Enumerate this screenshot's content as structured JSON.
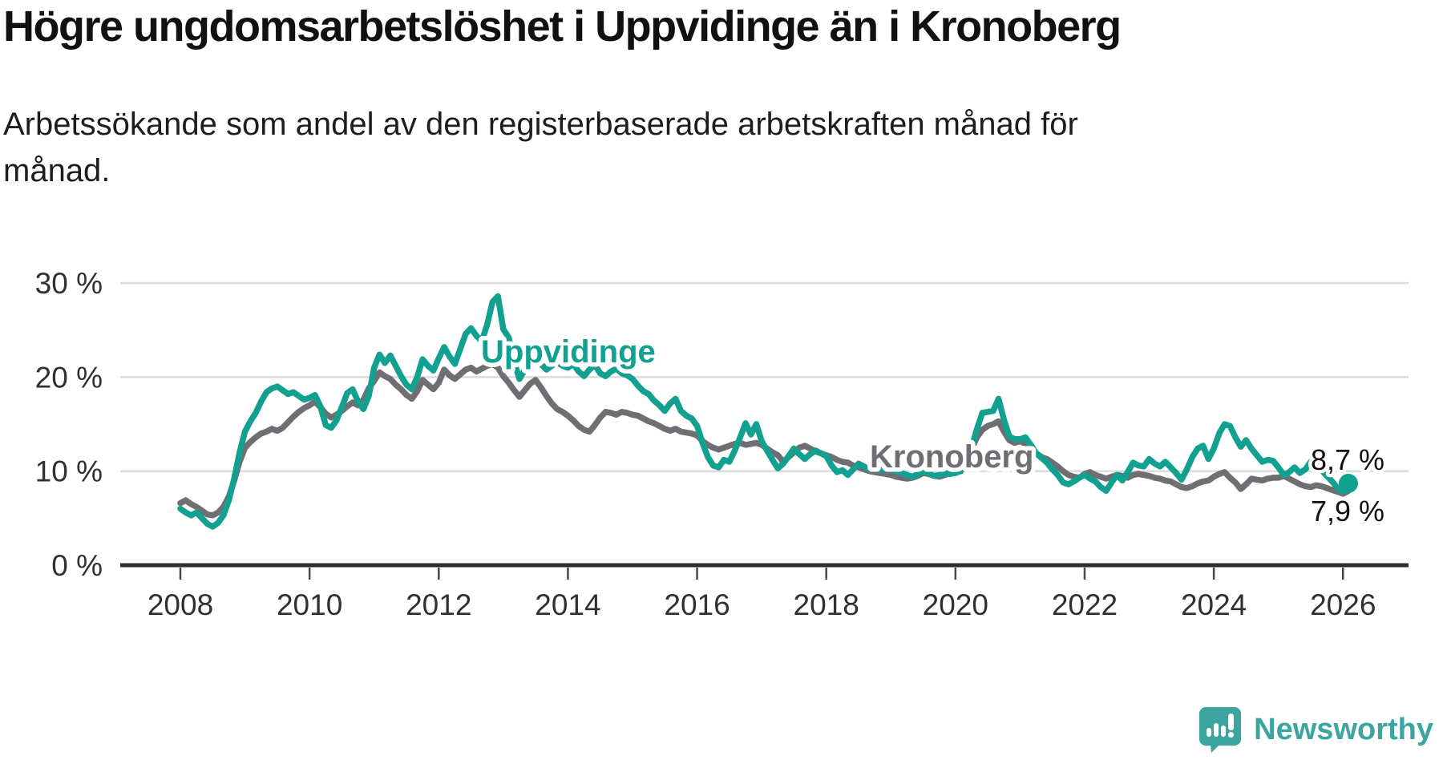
{
  "page": {
    "title": "Högre ungdomsarbetslöshet i Uppvidinge än i Kronoberg",
    "subtitle": "Arbetssökande som andel av den registerbaserade arbetskraften månad för månad."
  },
  "logo": {
    "label": "Newsworthy",
    "icon": "newsworthy-speech-bubble-bar-chart-icon",
    "color": "#3da59f"
  },
  "colors": {
    "uppvidinge": "#12a090",
    "kronoberg": "#6f6f73",
    "grid": "#dcdcdc",
    "axis": "#2e2e2e",
    "axis_text": "#303030",
    "value_label_text": "#111111",
    "halo": "#ffffff"
  },
  "chart_data": {
    "type": "line",
    "title": "Högre ungdomsarbetslöshet i Uppvidinge än i Kronoberg",
    "subtitle": "Arbetssökande som andel av den registerbaserade arbetskraften månad för månad.",
    "x_unit": "month",
    "x_start": "2008-01",
    "x_end": "2026-02",
    "x_tick_years": [
      2008,
      2010,
      2012,
      2014,
      2016,
      2018,
      2020,
      2022,
      2024,
      2026
    ],
    "y_ticks": [
      {
        "value": 0,
        "label": "0 %"
      },
      {
        "value": 10,
        "label": "10 %"
      },
      {
        "value": 20,
        "label": "20 %"
      },
      {
        "value": 30,
        "label": "30 %"
      }
    ],
    "ylim": [
      0,
      31
    ],
    "grid": "horizontal",
    "legend": "inline-labels",
    "series": [
      {
        "name": "Kronoberg",
        "label_text": "Kronoberg",
        "color": "#6f6f73",
        "end_label": "7,9 %",
        "end_value": 7.9,
        "end_dot": false,
        "values": [
          6.6,
          6.9,
          6.5,
          6.2,
          5.8,
          5.4,
          5.3,
          5.6,
          6.2,
          7.3,
          9.0,
          11.0,
          12.5,
          13.1,
          13.6,
          14.0,
          14.2,
          14.5,
          14.3,
          14.6,
          15.2,
          15.8,
          16.3,
          16.7,
          17.0,
          17.4,
          16.8,
          16.1,
          15.7,
          16.0,
          16.4,
          16.9,
          17.3,
          17.0,
          17.6,
          18.8,
          19.6,
          20.5,
          20.1,
          19.8,
          19.2,
          18.7,
          18.1,
          17.7,
          18.5,
          19.7,
          19.2,
          18.7,
          19.4,
          20.8,
          20.2,
          19.8,
          20.3,
          20.8,
          21.0,
          20.6,
          20.9,
          21.2,
          21.4,
          21.0,
          20.1,
          19.4,
          18.6,
          17.9,
          18.6,
          19.3,
          19.7,
          18.9,
          18.0,
          17.2,
          16.6,
          16.3,
          15.9,
          15.4,
          14.8,
          14.4,
          14.2,
          14.9,
          15.7,
          16.3,
          16.2,
          16.0,
          16.3,
          16.2,
          16.0,
          15.9,
          15.6,
          15.3,
          15.1,
          14.8,
          14.5,
          14.3,
          14.5,
          14.2,
          14.1,
          14.0,
          13.8,
          13.2,
          12.8,
          12.5,
          12.3,
          12.5,
          12.7,
          12.9,
          13.0,
          12.8,
          12.9,
          13.0,
          12.8,
          12.4,
          12.0,
          11.7,
          11.0,
          11.5,
          12.0,
          12.5,
          12.7,
          12.4,
          12.1,
          11.9,
          11.7,
          11.5,
          11.2,
          11.0,
          10.9,
          10.6,
          10.4,
          10.2,
          10.0,
          9.9,
          9.8,
          9.7,
          9.6,
          9.4,
          9.3,
          9.2,
          9.3,
          9.5,
          9.8,
          9.7,
          9.5,
          9.4,
          9.6,
          9.8,
          10.0,
          10.2,
          11.0,
          12.4,
          13.6,
          14.4,
          14.8,
          15.0,
          15.3,
          14.2,
          13.3,
          13.0,
          13.2,
          12.9,
          12.4,
          11.9,
          11.5,
          11.3,
          10.9,
          10.5,
          10.0,
          9.6,
          9.4,
          9.3,
          9.7,
          9.9,
          9.6,
          9.4,
          9.2,
          9.4,
          9.6,
          9.5,
          9.3,
          9.6,
          9.7,
          9.6,
          9.5,
          9.3,
          9.2,
          9.0,
          8.9,
          8.6,
          8.3,
          8.2,
          8.4,
          8.7,
          8.9,
          9.0,
          9.4,
          9.7,
          9.9,
          9.3,
          8.8,
          8.1,
          8.6,
          9.2,
          9.1,
          9.0,
          9.2,
          9.3,
          9.3,
          9.5,
          9.2,
          8.9,
          8.6,
          8.4,
          8.3,
          8.5,
          8.4,
          8.2,
          8.0,
          7.8,
          7.6,
          7.9
        ]
      },
      {
        "name": "Uppvidinge",
        "label_text": "Uppvidinge",
        "color": "#12a090",
        "end_label": "8,7 %",
        "end_value": 8.7,
        "end_dot": true,
        "values": [
          6.0,
          5.6,
          5.3,
          5.6,
          5.0,
          4.4,
          4.1,
          4.5,
          5.3,
          6.9,
          9.2,
          12.0,
          14.2,
          15.3,
          16.2,
          17.4,
          18.4,
          18.8,
          19.0,
          18.6,
          18.2,
          18.4,
          18.0,
          17.6,
          17.8,
          18.1,
          16.9,
          14.9,
          14.6,
          15.4,
          16.8,
          18.3,
          18.7,
          17.4,
          16.6,
          18.0,
          21.0,
          22.4,
          21.5,
          22.3,
          21.2,
          20.1,
          19.2,
          18.7,
          20.0,
          21.9,
          21.2,
          20.7,
          22.0,
          23.2,
          22.2,
          21.4,
          23.0,
          24.6,
          25.2,
          24.4,
          23.8,
          25.6,
          28.0,
          28.6,
          25.1,
          24.2,
          21.6,
          19.8,
          20.8,
          21.6,
          22.0,
          21.4,
          20.8,
          21.2,
          21.6,
          21.2,
          21.0,
          21.4,
          20.6,
          20.1,
          20.8,
          21.3,
          20.4,
          20.1,
          20.6,
          20.9,
          20.4,
          20.2,
          19.8,
          19.1,
          18.5,
          18.2,
          17.5,
          17.0,
          16.4,
          17.2,
          17.7,
          16.4,
          15.9,
          15.6,
          14.8,
          13.0,
          11.5,
          10.6,
          10.4,
          11.2,
          11.0,
          12.2,
          13.6,
          15.1,
          13.9,
          15.0,
          13.2,
          12.2,
          11.2,
          10.3,
          10.8,
          11.6,
          12.4,
          11.8,
          11.3,
          11.8,
          12.2,
          11.9,
          11.6,
          10.6,
          9.9,
          10.1,
          9.6,
          10.2,
          10.8,
          10.5,
          10.2,
          10.4,
          10.1,
          10.3,
          10.2,
          10.0,
          9.8,
          9.6,
          9.4,
          9.7,
          10.0,
          9.8,
          9.5,
          9.6,
          9.8,
          9.7,
          9.8,
          10.0,
          10.8,
          12.5,
          14.5,
          16.2,
          16.3,
          16.4,
          17.7,
          15.5,
          13.7,
          13.4,
          13.4,
          13.6,
          12.8,
          11.9,
          11.4,
          10.9,
          10.2,
          9.6,
          8.8,
          8.6,
          8.9,
          9.3,
          9.6,
          9.2,
          8.9,
          8.3,
          7.9,
          8.8,
          9.6,
          9.0,
          9.9,
          10.9,
          10.6,
          10.5,
          11.3,
          10.8,
          10.5,
          11.0,
          10.4,
          9.8,
          9.1,
          10.2,
          11.5,
          12.4,
          12.7,
          11.3,
          12.4,
          14.0,
          15.0,
          14.8,
          13.6,
          12.6,
          13.3,
          12.4,
          11.7,
          11.0,
          11.2,
          11.1,
          10.4,
          9.6,
          9.9,
          10.4,
          9.8,
          10.2,
          11.0,
          10.6,
          10.1,
          9.5,
          8.9,
          8.2,
          7.8,
          8.7
        ]
      }
    ]
  }
}
